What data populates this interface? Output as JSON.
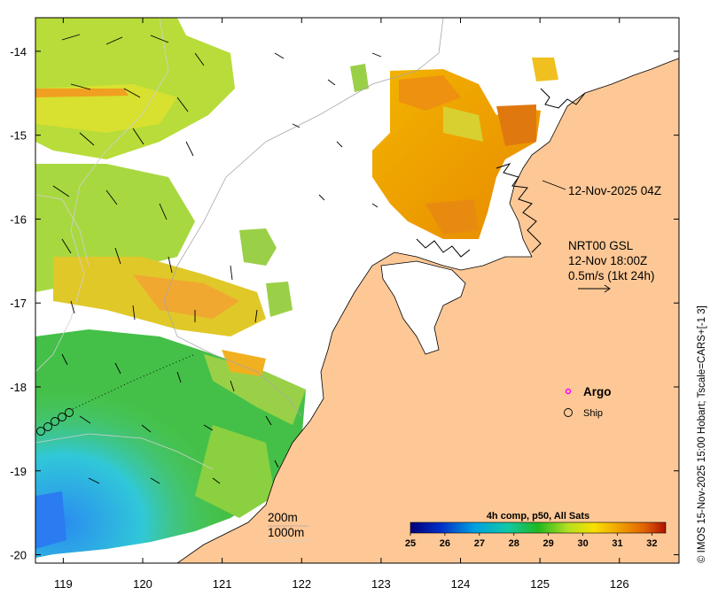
{
  "map": {
    "x_ticks": [
      "119",
      "120",
      "121",
      "122",
      "123",
      "124",
      "125",
      "126"
    ],
    "y_ticks": [
      "-14",
      "-15",
      "-16",
      "-17",
      "-18",
      "-19",
      "-20"
    ],
    "x_range": [
      118.65,
      126.75
    ],
    "y_range": [
      -20.1,
      -13.6
    ],
    "timestamp_label": "12-Nov-2025 04Z",
    "currents": {
      "title": "NRT00 GSL",
      "time": "12-Nov 18:00Z",
      "scale": "0.5m/s (1kt 24h)"
    },
    "legend": {
      "argo": "Argo",
      "ship": "Ship"
    },
    "isobaths": {
      "shallow": "200m",
      "deep": "1000m"
    },
    "colorbar": {
      "title": "4h comp, p50, All Sats",
      "ticks": [
        "25",
        "26",
        "27",
        "28",
        "29",
        "30",
        "31",
        "32"
      ],
      "range": [
        25,
        32.4
      ]
    },
    "credit": "© IMOS 15-Nov-2025 15:00 Hobart; Tscale=CARS+[-1 3]"
  },
  "colors": {
    "land": "#fdc896",
    "coast": "#000000",
    "argo": "#ff00ff",
    "isobath_200": "#a8a8a8",
    "isobath_1000": "#d0d0d0"
  }
}
